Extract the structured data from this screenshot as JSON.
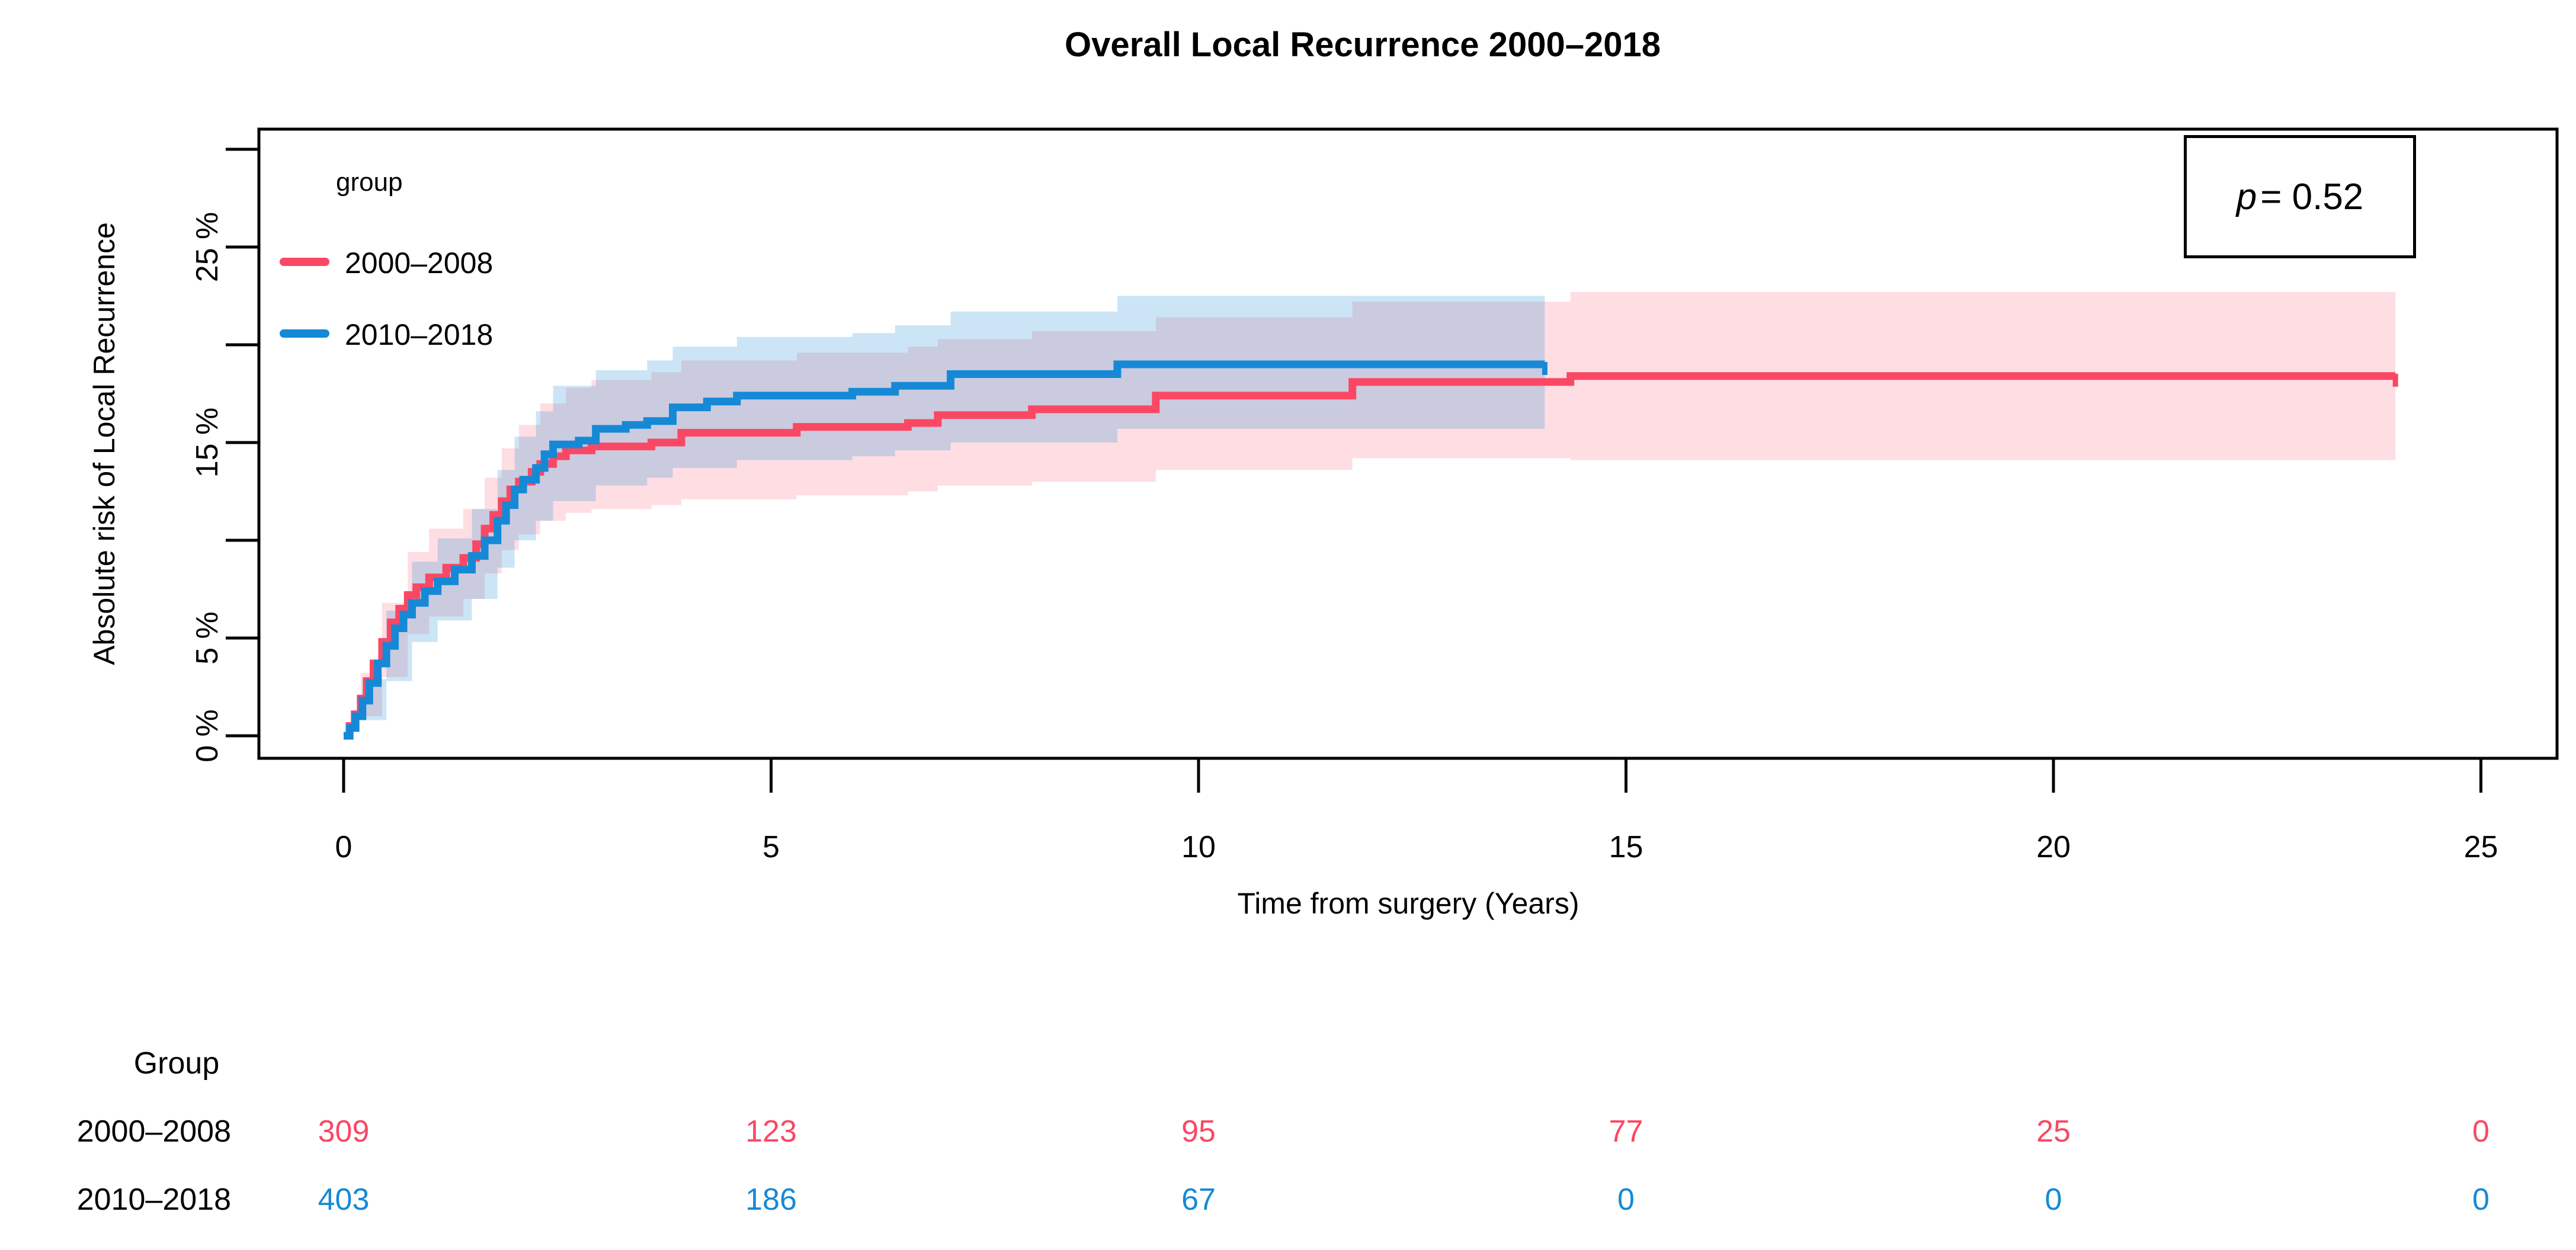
{
  "title": "Overall Local Recurrence 2000–2018",
  "pvalue": {
    "symbol": "p",
    "rest": "= 0.52"
  },
  "legend": {
    "title": "group"
  },
  "colors": {
    "group_2000_2008": "#FA4864",
    "group_2010_2018": "#1689D6",
    "band_2000_2008": "rgba(250,72,100,0.18)",
    "band_2010_2018": "rgba(22,137,214,0.22)",
    "axis": "#000000",
    "background": "#ffffff"
  },
  "chart_data": {
    "type": "line",
    "subtype": "step-cumulative-incidence-with-confidence-bands",
    "title": "Overall Local Recurrence 2000–2018",
    "xlabel": "Time from surgery (Years)",
    "ylabel": "Absolute risk of Local Recurrence",
    "x_ticks": [
      0,
      5,
      10,
      15,
      20,
      25
    ],
    "y_ticks": [
      0,
      5,
      10,
      15,
      20,
      25,
      30
    ],
    "y_tick_labels": [
      {
        "value": 0,
        "label": "0 %"
      },
      {
        "value": 5,
        "label": "5 %"
      },
      {
        "value": 15,
        "label": "15 %"
      },
      {
        "value": 25,
        "label": "25 %"
      }
    ],
    "xlim": [
      -1,
      26
    ],
    "ylim": [
      -1.2,
      31
    ],
    "grid": false,
    "legend_position": "inside top-left",
    "pvalue_text": "p = 0.52",
    "series": [
      {
        "name": "2000–2008",
        "color": "#FA4864",
        "band_color": "rgba(250,72,100,0.18)",
        "unit": "percent",
        "steps": [
          [
            0,
            0
          ],
          [
            0.07,
            0.5
          ],
          [
            0.13,
            1.1
          ],
          [
            0.2,
            1.9
          ],
          [
            0.27,
            2.8
          ],
          [
            0.35,
            3.7
          ],
          [
            0.45,
            4.8
          ],
          [
            0.55,
            5.8
          ],
          [
            0.65,
            6.5
          ],
          [
            0.75,
            7.2
          ],
          [
            0.85,
            7.6
          ],
          [
            1.0,
            8.1
          ],
          [
            1.2,
            8.6
          ],
          [
            1.4,
            9.1
          ],
          [
            1.55,
            9.8
          ],
          [
            1.65,
            10.6
          ],
          [
            1.75,
            11.3
          ],
          [
            1.85,
            12.0
          ],
          [
            1.95,
            12.6
          ],
          [
            2.05,
            13.0
          ],
          [
            2.2,
            13.5
          ],
          [
            2.3,
            13.9
          ],
          [
            2.45,
            14.3
          ],
          [
            2.6,
            14.6
          ],
          [
            2.9,
            14.8
          ],
          [
            3.6,
            15.0
          ],
          [
            3.95,
            15.5
          ],
          [
            5.3,
            15.8
          ],
          [
            6.6,
            16.0
          ],
          [
            6.95,
            16.4
          ],
          [
            8.05,
            16.7
          ],
          [
            9.5,
            17.4
          ],
          [
            11.8,
            18.1
          ],
          [
            14.35,
            18.4
          ],
          [
            24,
            18.4
          ]
        ],
        "band": [
          [
            0,
            0,
            0
          ],
          [
            0.2,
            1.0,
            3.2
          ],
          [
            0.45,
            3.0,
            6.8
          ],
          [
            0.75,
            5.2,
            9.4
          ],
          [
            1.0,
            6.1,
            10.6
          ],
          [
            1.4,
            7.0,
            11.6
          ],
          [
            1.65,
            8.3,
            13.2
          ],
          [
            1.85,
            9.5,
            14.7
          ],
          [
            2.05,
            10.3,
            15.9
          ],
          [
            2.3,
            11.0,
            17.0
          ],
          [
            2.6,
            11.4,
            17.8
          ],
          [
            2.9,
            11.6,
            18.2
          ],
          [
            3.6,
            11.8,
            18.6
          ],
          [
            3.95,
            12.1,
            19.2
          ],
          [
            5.3,
            12.3,
            19.6
          ],
          [
            6.6,
            12.5,
            19.9
          ],
          [
            6.95,
            12.8,
            20.3
          ],
          [
            8.05,
            13.0,
            20.7
          ],
          [
            9.5,
            13.6,
            21.4
          ],
          [
            11.8,
            14.2,
            22.2
          ],
          [
            14.35,
            14.1,
            22.7
          ],
          [
            24,
            14.1,
            22.7
          ]
        ]
      },
      {
        "name": "2010–2018",
        "color": "#1689D6",
        "band_color": "rgba(22,137,214,0.22)",
        "unit": "percent",
        "steps": [
          [
            0,
            0
          ],
          [
            0.07,
            0.4
          ],
          [
            0.14,
            1.0
          ],
          [
            0.22,
            1.8
          ],
          [
            0.3,
            2.7
          ],
          [
            0.4,
            3.7
          ],
          [
            0.5,
            4.6
          ],
          [
            0.6,
            5.5
          ],
          [
            0.7,
            6.2
          ],
          [
            0.8,
            6.8
          ],
          [
            0.95,
            7.4
          ],
          [
            1.1,
            7.9
          ],
          [
            1.3,
            8.5
          ],
          [
            1.5,
            9.2
          ],
          [
            1.65,
            10.0
          ],
          [
            1.8,
            11.0
          ],
          [
            1.9,
            11.8
          ],
          [
            2.0,
            12.6
          ],
          [
            2.1,
            13.1
          ],
          [
            2.25,
            13.7
          ],
          [
            2.35,
            14.4
          ],
          [
            2.45,
            14.9
          ],
          [
            2.75,
            15.1
          ],
          [
            2.95,
            15.7
          ],
          [
            3.3,
            15.9
          ],
          [
            3.55,
            16.1
          ],
          [
            3.85,
            16.8
          ],
          [
            4.25,
            17.1
          ],
          [
            4.6,
            17.4
          ],
          [
            5.95,
            17.6
          ],
          [
            6.45,
            17.9
          ],
          [
            7.1,
            18.5
          ],
          [
            9.05,
            19.0
          ],
          [
            14.05,
            19.0
          ]
        ],
        "band": [
          [
            0,
            0,
            0
          ],
          [
            0.22,
            0.8,
            2.9
          ],
          [
            0.5,
            2.8,
            6.4
          ],
          [
            0.8,
            4.8,
            8.9
          ],
          [
            1.1,
            5.9,
            10.1
          ],
          [
            1.5,
            7.0,
            11.6
          ],
          [
            1.8,
            8.6,
            13.6
          ],
          [
            2.0,
            10.0,
            15.3
          ],
          [
            2.25,
            11.0,
            16.6
          ],
          [
            2.45,
            12.0,
            17.9
          ],
          [
            2.95,
            12.8,
            18.7
          ],
          [
            3.55,
            13.2,
            19.2
          ],
          [
            3.85,
            13.7,
            19.9
          ],
          [
            4.6,
            14.1,
            20.4
          ],
          [
            5.95,
            14.3,
            20.6
          ],
          [
            6.45,
            14.6,
            21.0
          ],
          [
            7.1,
            15.0,
            21.7
          ],
          [
            9.05,
            15.7,
            22.5
          ],
          [
            14.05,
            15.3,
            22.6
          ]
        ]
      }
    ],
    "at_risk_table": {
      "header": "Group",
      "times": [
        0,
        5,
        10,
        15,
        20,
        25
      ],
      "rows": [
        {
          "label": "2000–2008",
          "color": "#FA4864",
          "counts": [
            309,
            123,
            95,
            77,
            25,
            0
          ]
        },
        {
          "label": "2010–2018",
          "color": "#1689D6",
          "counts": [
            403,
            186,
            67,
            0,
            0,
            0
          ]
        }
      ]
    }
  }
}
